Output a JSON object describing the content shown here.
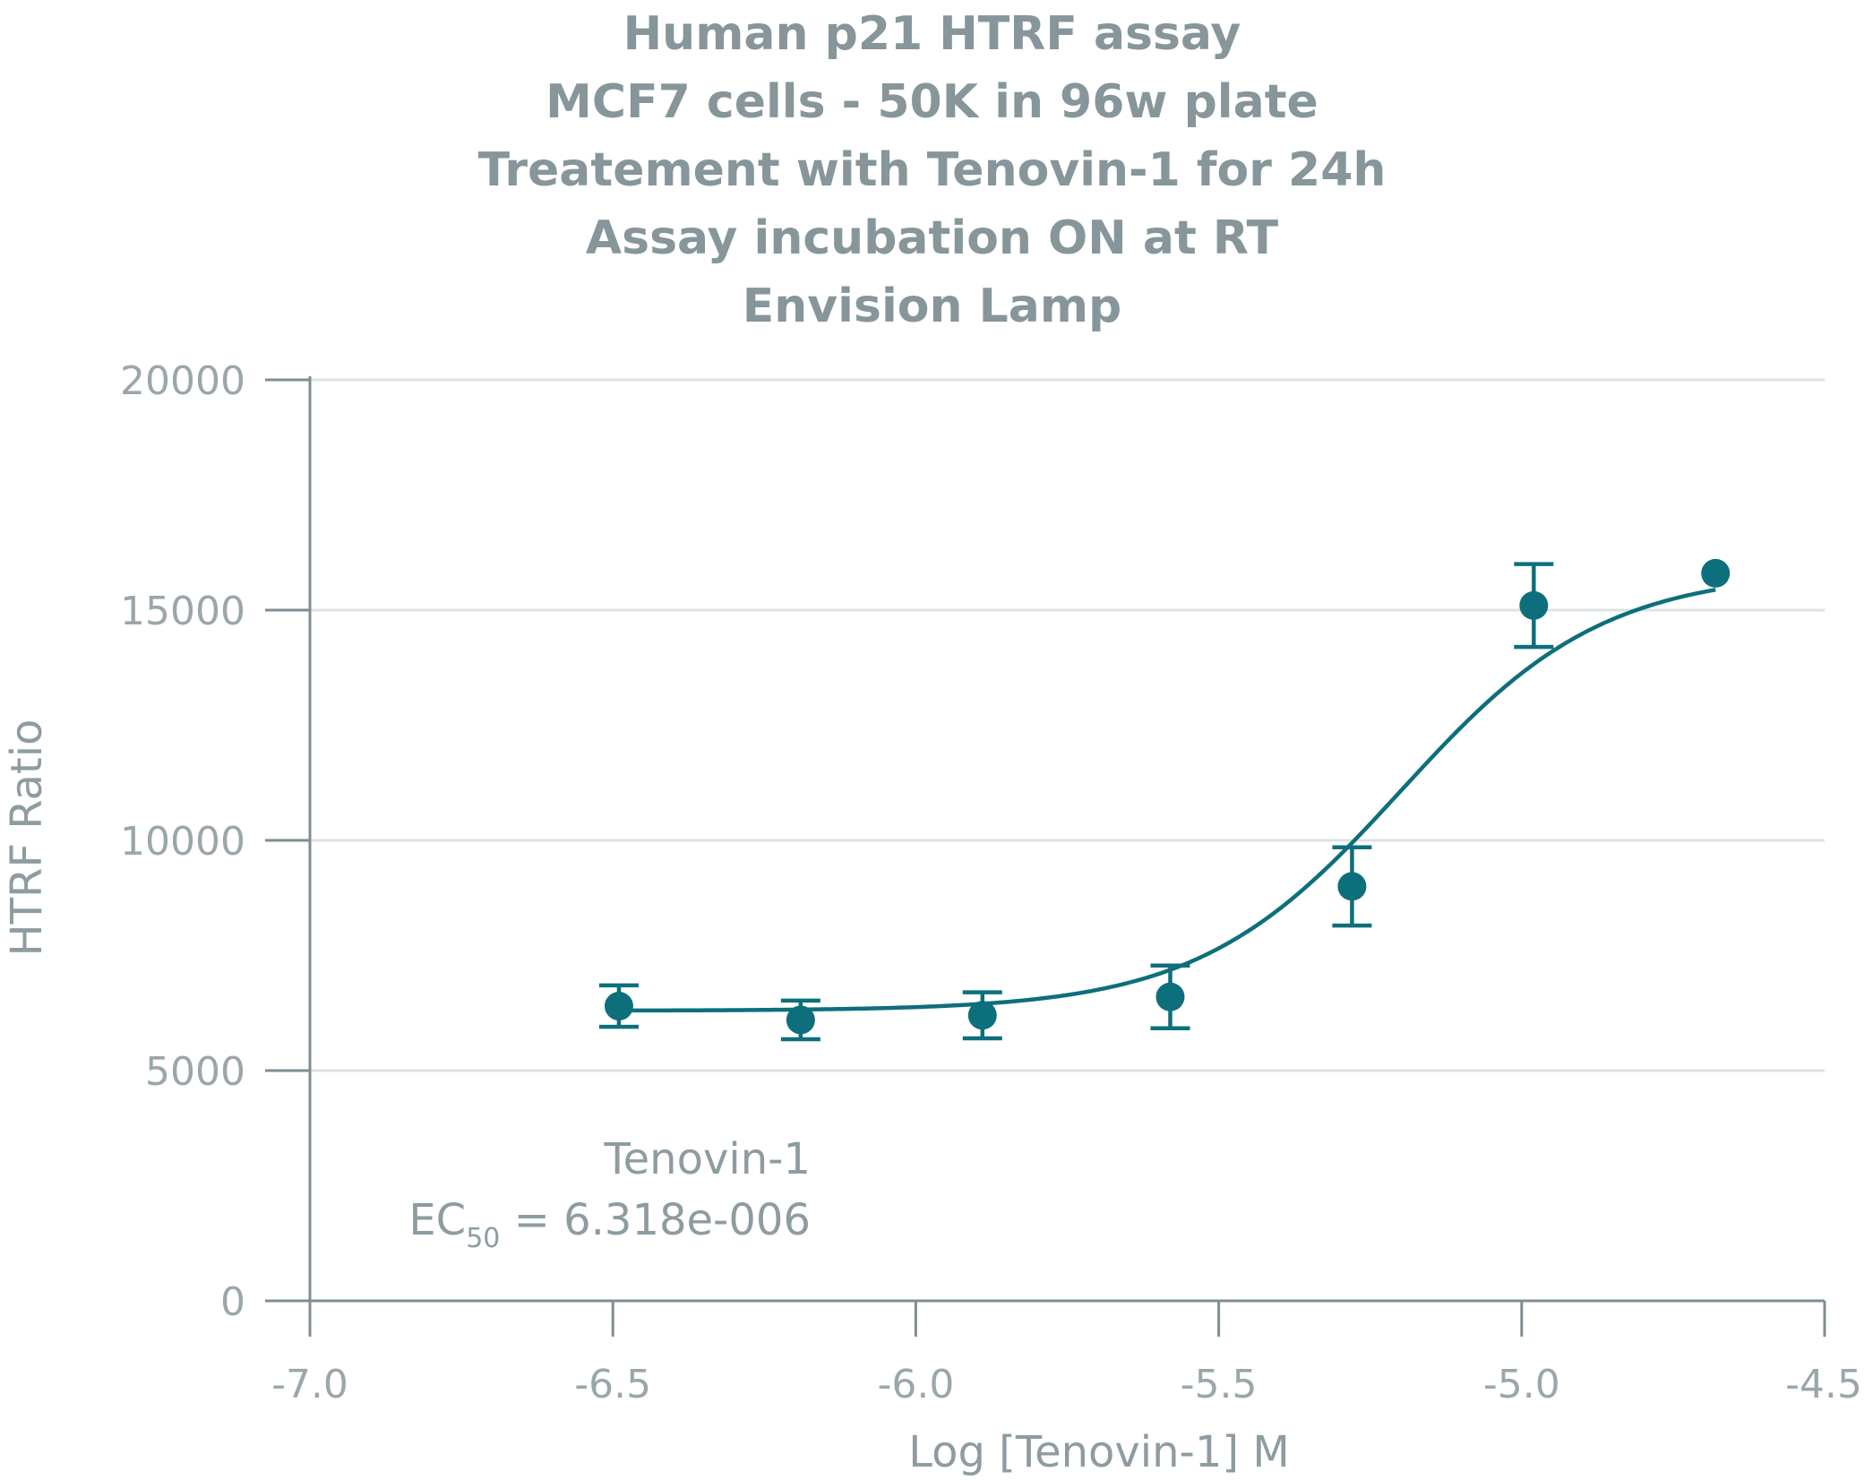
{
  "chart_data": {
    "type": "scatter",
    "title_lines": [
      "Human p21 HTRF assay",
      "MCF7 cells - 50K in 96w plate",
      "Treatement with Tenovin-1 for 24h",
      "Assay incubation ON at RT",
      "Envision Lamp"
    ],
    "xlabel": "Log [Tenovin-1] M",
    "ylabel": "HTRF Ratio",
    "xlim": [
      -7.0,
      -4.5
    ],
    "ylim": [
      0,
      20000
    ],
    "x_ticks": [
      -7.0,
      -6.5,
      -6.0,
      -5.5,
      -5.0,
      -4.5
    ],
    "x_tick_labels": [
      "-7.0",
      "-6.5",
      "-6.0",
      "-5.5",
      "-5.0",
      "-4.5"
    ],
    "y_ticks": [
      0,
      5000,
      10000,
      15000,
      20000
    ],
    "y_tick_labels": [
      "0",
      "5000",
      "10000",
      "15000",
      "20000"
    ],
    "grid": "horizontal",
    "series": [
      {
        "x": [
          -6.49,
          -6.19,
          -5.89,
          -5.58,
          -5.28,
          -4.98,
          -4.68
        ],
        "y": [
          6400,
          6100,
          6200,
          6600,
          9000,
          15100,
          15800
        ],
        "err": [
          450,
          420,
          500,
          680,
          850,
          900,
          0
        ]
      }
    ],
    "fit": {
      "type": "4PL",
      "bottom": 6300,
      "top": 15850,
      "logEC50": -5.1994,
      "hill": 2.6
    },
    "annotation": {
      "compound": "Tenovin-1",
      "ec50_prefix": "EC",
      "ec50_subscript": "50",
      "ec50_value": " = 6.318e-006"
    },
    "colors": {
      "series": "#0d6f7b",
      "axis": "#7d8e92",
      "grid": "#dde3e4",
      "text": "#8d9ca0"
    }
  }
}
